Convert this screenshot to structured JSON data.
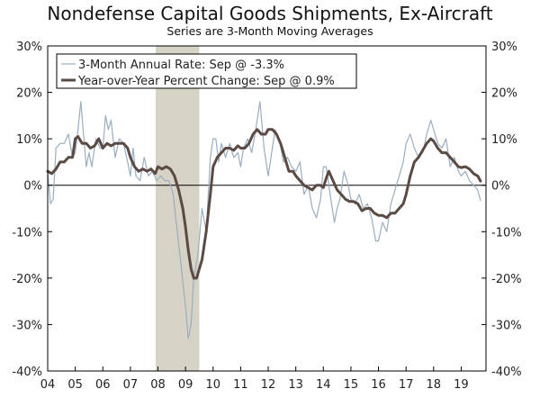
{
  "chart_data": {
    "type": "line",
    "title": "Nondefense Capital Goods Shipments, Ex-Aircraft",
    "subtitle": "Series are 3-Month Moving Averages",
    "xlabel": "",
    "ylabel": "",
    "x_range": [
      2004.0,
      2019.9
    ],
    "ylim": [
      -40,
      30
    ],
    "y_ticks": [
      30,
      20,
      10,
      0,
      -10,
      -20,
      -30,
      -40
    ],
    "y_tick_labels": [
      "30%",
      "20%",
      "10%",
      "0%",
      "-10%",
      "-20%",
      "-30%",
      "-40%"
    ],
    "x_ticks": [
      2004,
      2005,
      2006,
      2007,
      2008,
      2009,
      2010,
      2011,
      2012,
      2013,
      2014,
      2015,
      2016,
      2017,
      2018,
      2019
    ],
    "x_tick_labels": [
      "04",
      "05",
      "06",
      "07",
      "08",
      "09",
      "10",
      "11",
      "12",
      "13",
      "14",
      "15",
      "16",
      "17",
      "18",
      "19"
    ],
    "recession": {
      "start": 2007.92,
      "end": 2009.5,
      "color": "#d6d3c6"
    },
    "legend_position": "top-left",
    "series": [
      {
        "name": "3-Month Annual Rate: Sep @ -3.3%",
        "color": "#9aaec0",
        "width": 1.2,
        "x": [
          2004.0,
          2004.1,
          2004.2,
          2004.3,
          2004.45,
          2004.6,
          2004.75,
          2004.9,
          2005.0,
          2005.1,
          2005.2,
          2005.3,
          2005.4,
          2005.5,
          2005.6,
          2005.75,
          2005.9,
          2006.0,
          2006.1,
          2006.2,
          2006.3,
          2006.45,
          2006.6,
          2006.75,
          2006.9,
          2007.0,
          2007.1,
          2007.2,
          2007.35,
          2007.5,
          2007.65,
          2007.8,
          2007.95,
          2008.1,
          2008.25,
          2008.4,
          2008.55,
          2008.7,
          2008.85,
          2009.0,
          2009.1,
          2009.2,
          2009.3,
          2009.45,
          2009.6,
          2009.75,
          2009.9,
          2010.0,
          2010.1,
          2010.2,
          2010.3,
          2010.45,
          2010.6,
          2010.75,
          2010.9,
          2011.0,
          2011.1,
          2011.25,
          2011.4,
          2011.55,
          2011.7,
          2011.85,
          2012.0,
          2012.1,
          2012.25,
          2012.4,
          2012.55,
          2012.7,
          2012.85,
          2013.0,
          2013.15,
          2013.3,
          2013.45,
          2013.6,
          2013.75,
          2013.9,
          2014.0,
          2014.1,
          2014.25,
          2014.4,
          2014.5,
          2014.6,
          2014.75,
          2014.9,
          2015.0,
          2015.15,
          2015.3,
          2015.45,
          2015.6,
          2015.75,
          2015.9,
          2016.0,
          2016.15,
          2016.3,
          2016.45,
          2016.6,
          2016.75,
          2016.9,
          2017.0,
          2017.15,
          2017.3,
          2017.45,
          2017.6,
          2017.75,
          2017.9,
          2018.0,
          2018.15,
          2018.3,
          2018.45,
          2018.6,
          2018.75,
          2018.9,
          2019.0,
          2019.15,
          2019.3,
          2019.45,
          2019.6,
          2019.7
        ],
        "y": [
          3,
          -4,
          -3,
          8,
          9,
          9,
          11,
          6,
          7,
          12,
          18,
          11,
          4,
          7,
          4,
          10,
          8,
          8,
          15,
          12,
          14,
          6,
          10,
          9,
          5,
          2,
          8,
          2,
          1,
          6,
          2,
          3,
          1,
          2,
          1,
          1,
          -2,
          -10,
          -18,
          -26,
          -33,
          -30,
          -20,
          -15,
          -5,
          -10,
          6,
          10,
          10,
          5,
          9,
          6,
          9,
          6,
          7,
          4,
          8,
          10,
          7,
          12,
          18,
          8,
          2,
          6,
          12,
          10,
          5,
          6,
          4,
          3,
          5,
          -2,
          0,
          -5,
          -7,
          -3,
          4,
          4,
          -2,
          -8,
          -5,
          -3,
          3,
          0,
          -3,
          -4,
          -2,
          -5,
          -4,
          -7,
          -12,
          -12,
          -8,
          -10,
          -4,
          -1,
          2,
          5,
          9,
          11,
          8,
          6,
          7,
          11,
          14,
          12,
          9,
          8,
          10,
          4,
          6,
          3,
          2,
          3,
          1,
          0,
          -1,
          -3.3
        ]
      },
      {
        "name": "Year-over-Year Percent Change: Sep @ 0.9%",
        "color": "#5b4a43",
        "width": 3,
        "x": [
          2004.0,
          2004.15,
          2004.3,
          2004.45,
          2004.6,
          2004.75,
          2004.9,
          2005.0,
          2005.1,
          2005.25,
          2005.4,
          2005.55,
          2005.7,
          2005.85,
          2006.0,
          2006.15,
          2006.3,
          2006.45,
          2006.6,
          2006.75,
          2006.9,
          2007.0,
          2007.15,
          2007.3,
          2007.45,
          2007.6,
          2007.75,
          2007.9,
          2008.0,
          2008.15,
          2008.3,
          2008.45,
          2008.6,
          2008.75,
          2008.9,
          2009.0,
          2009.1,
          2009.2,
          2009.3,
          2009.4,
          2009.5,
          2009.6,
          2009.75,
          2009.9,
          2010.0,
          2010.15,
          2010.3,
          2010.45,
          2010.6,
          2010.75,
          2010.9,
          2011.0,
          2011.15,
          2011.3,
          2011.45,
          2011.6,
          2011.75,
          2011.9,
          2012.0,
          2012.15,
          2012.3,
          2012.45,
          2012.6,
          2012.75,
          2012.9,
          2013.0,
          2013.15,
          2013.3,
          2013.45,
          2013.6,
          2013.75,
          2013.9,
          2014.0,
          2014.1,
          2014.2,
          2014.35,
          2014.5,
          2014.65,
          2014.8,
          2014.95,
          2015.1,
          2015.25,
          2015.4,
          2015.55,
          2015.7,
          2015.85,
          2016.0,
          2016.15,
          2016.3,
          2016.45,
          2016.6,
          2016.75,
          2016.9,
          2017.0,
          2017.15,
          2017.3,
          2017.45,
          2017.6,
          2017.75,
          2017.9,
          2018.0,
          2018.15,
          2018.3,
          2018.45,
          2018.6,
          2018.75,
          2018.9,
          2019.0,
          2019.15,
          2019.3,
          2019.45,
          2019.6,
          2019.7
        ],
        "y": [
          3,
          2.5,
          3.5,
          5,
          5,
          6,
          6,
          10,
          10.5,
          9,
          9,
          8,
          8.5,
          10,
          8,
          9,
          8.5,
          9,
          9,
          9,
          8,
          6,
          4,
          3,
          3.5,
          3,
          3.5,
          2.5,
          4,
          3.5,
          4,
          3.5,
          2,
          -1,
          -5,
          -9,
          -14,
          -18,
          -20,
          -20,
          -18,
          -16,
          -10,
          -2,
          4,
          6,
          7,
          8,
          8,
          7.5,
          8.5,
          8,
          8,
          9,
          11,
          12,
          11,
          11,
          12,
          12,
          11,
          9,
          6,
          3,
          3,
          2,
          1,
          0,
          -0.5,
          -1,
          0,
          0,
          -0.5,
          1.5,
          3,
          1,
          -1,
          -2,
          -3,
          -3.5,
          -3.5,
          -4,
          -5.5,
          -5,
          -5,
          -6,
          -6.5,
          -6.5,
          -7,
          -6,
          -6,
          -5,
          -4,
          -2,
          2,
          5,
          6,
          7.5,
          9,
          10,
          9.5,
          8,
          7,
          7,
          6,
          5,
          4,
          3.8,
          4,
          3.5,
          2.5,
          2,
          0.9
        ]
      }
    ]
  }
}
